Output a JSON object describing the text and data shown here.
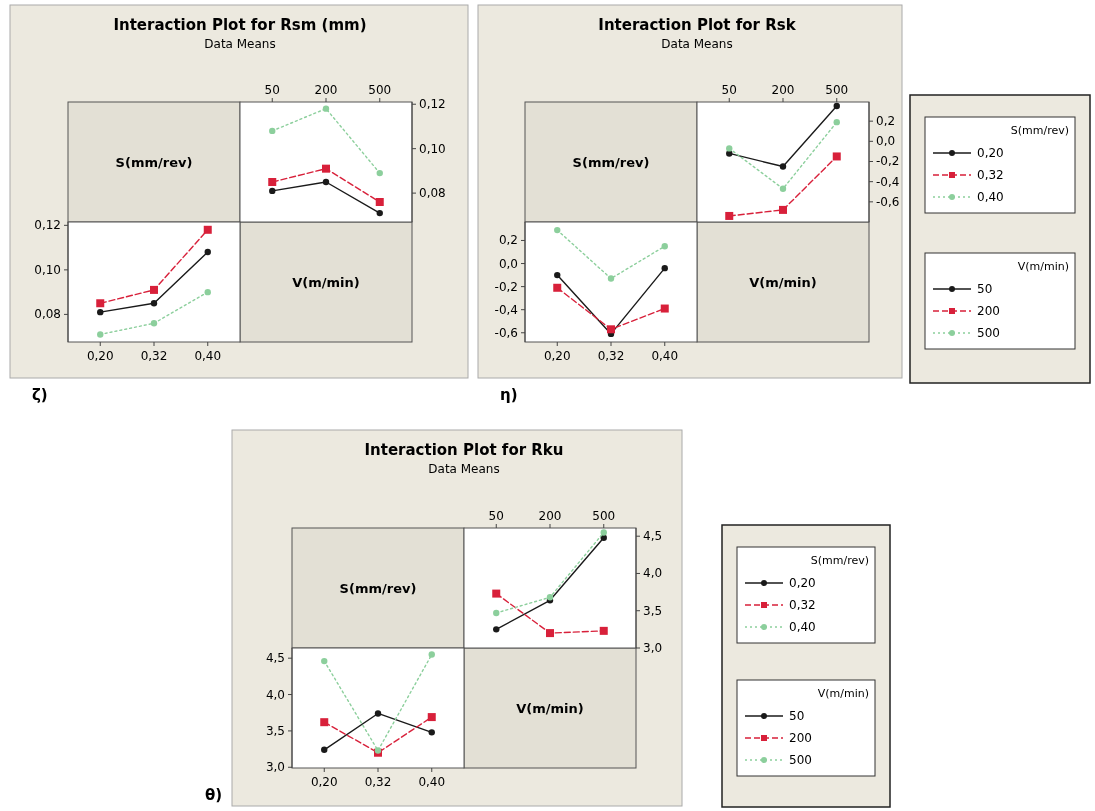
{
  "chart_data": [
    {
      "type": "line",
      "title": "Interaction Plot for Rsm (mm)",
      "subtitle": "Data Means",
      "xlabel": "V(m/min)",
      "annotations": [
        "ζ)"
      ],
      "categories": [
        "50",
        "200",
        "500"
      ],
      "ylim": [
        0.067,
        0.121
      ],
      "yticks": [
        {
          "value": 0.08,
          "label": "0,08"
        },
        {
          "value": 0.1,
          "label": "0,10"
        },
        {
          "value": 0.12,
          "label": "0,12"
        }
      ],
      "legend": false,
      "series": [
        {
          "color": "#1a1a1a",
          "line_style": "solid",
          "marker": "circle",
          "values": [
            0.081,
            0.085,
            0.071
          ]
        },
        {
          "color": "#d8203a",
          "line_style": "dashed",
          "marker": "square",
          "values": [
            0.085,
            0.091,
            0.076
          ]
        },
        {
          "color": "#8ccf9c",
          "line_style": "dotted",
          "marker": "circle",
          "values": [
            0.108,
            0.118,
            0.089
          ]
        }
      ]
    },
    {
      "type": "line",
      "xlabel": "S(mm/rev)",
      "categories": [
        "0,20",
        "0,32",
        "0,40"
      ],
      "ylim": [
        0.0676,
        0.1215
      ],
      "yticks": [
        {
          "value": 0.08,
          "label": "0,08"
        },
        {
          "value": 0.1,
          "label": "0,10"
        },
        {
          "value": 0.12,
          "label": "0,12"
        }
      ],
      "legend": false,
      "series": [
        {
          "color": "#1a1a1a",
          "line_style": "solid",
          "marker": "circle",
          "values": [
            0.081,
            0.085,
            0.108
          ]
        },
        {
          "color": "#d8203a",
          "line_style": "dashed",
          "marker": "square",
          "values": [
            0.085,
            0.091,
            0.118
          ]
        },
        {
          "color": "#8ccf9c",
          "line_style": "dotted",
          "marker": "circle",
          "values": [
            0.071,
            0.076,
            0.09
          ]
        }
      ]
    },
    {
      "type": "line",
      "title": "Interaction Plot for Rsk",
      "subtitle": "Data Means",
      "xlabel": "V(m/min)",
      "annotations": [
        "η)"
      ],
      "categories": [
        "50",
        "200",
        "500"
      ],
      "ylim": [
        -0.8,
        0.39
      ],
      "yticks": [
        {
          "value": -0.6,
          "label": "-0,6"
        },
        {
          "value": -0.4,
          "label": "-0,4"
        },
        {
          "value": -0.2,
          "label": "-0,2"
        },
        {
          "value": 0,
          "label": "0,0"
        },
        {
          "value": 0.2,
          "label": "0,2"
        }
      ],
      "legend": "right",
      "legend_title": "S(mm/rev)",
      "series": [
        {
          "name": "0,20",
          "color": "#1a1a1a",
          "line_style": "solid",
          "marker": "circle",
          "values": [
            -0.12,
            -0.25,
            0.35
          ]
        },
        {
          "name": "0,32",
          "color": "#d8203a",
          "line_style": "dashed",
          "marker": "square",
          "values": [
            -0.74,
            -0.68,
            -0.15
          ]
        },
        {
          "name": "0,40",
          "color": "#8ccf9c",
          "line_style": "dotted",
          "marker": "circle",
          "values": [
            -0.07,
            -0.47,
            0.19
          ]
        }
      ]
    },
    {
      "type": "line",
      "xlabel": "S(mm/rev)",
      "categories": [
        "0,20",
        "0,32",
        "0,40"
      ],
      "ylim": [
        -0.68,
        0.36
      ],
      "yticks": [
        {
          "value": -0.6,
          "label": "-0,6"
        },
        {
          "value": -0.4,
          "label": "-0,4"
        },
        {
          "value": -0.2,
          "label": "-0,2"
        },
        {
          "value": 0,
          "label": "0,0"
        },
        {
          "value": 0.2,
          "label": "0,2"
        }
      ],
      "legend": "right",
      "legend_title": "V(m/min)",
      "series": [
        {
          "name": "50",
          "color": "#1a1a1a",
          "line_style": "solid",
          "marker": "circle",
          "values": [
            -0.1,
            -0.61,
            -0.04
          ]
        },
        {
          "name": "200",
          "color": "#d8203a",
          "line_style": "dashed",
          "marker": "square",
          "values": [
            -0.21,
            -0.57,
            -0.39
          ]
        },
        {
          "name": "500",
          "color": "#8ccf9c",
          "line_style": "dotted",
          "marker": "circle",
          "values": [
            0.29,
            -0.13,
            0.15
          ]
        }
      ]
    },
    {
      "type": "line",
      "title": "Interaction Plot for Rku",
      "subtitle": "Data Means",
      "xlabel": "V(m/min)",
      "annotations": [
        "θ)"
      ],
      "categories": [
        "50",
        "200",
        "500"
      ],
      "ylim": [
        3.0,
        4.61
      ],
      "yticks": [
        {
          "value": 3,
          "label": "3,0"
        },
        {
          "value": 3.5,
          "label": "3,5"
        },
        {
          "value": 4,
          "label": "4,0"
        },
        {
          "value": 4.5,
          "label": "4,5"
        }
      ],
      "legend": "right",
      "legend_title": "S(mm/rev)",
      "series": [
        {
          "name": "0,20",
          "color": "#1a1a1a",
          "line_style": "solid",
          "marker": "circle",
          "values": [
            3.25,
            3.64,
            4.48
          ]
        },
        {
          "name": "0,32",
          "color": "#d8203a",
          "line_style": "dashed",
          "marker": "square",
          "values": [
            3.73,
            3.2,
            3.23
          ]
        },
        {
          "name": "0,40",
          "color": "#8ccf9c",
          "line_style": "dotted",
          "marker": "circle",
          "values": [
            3.47,
            3.68,
            4.55
          ]
        }
      ]
    },
    {
      "type": "line",
      "xlabel": "S(mm/rev)",
      "categories": [
        "0,20",
        "0,32",
        "0,40"
      ],
      "ylim": [
        2.99,
        4.64
      ],
      "yticks": [
        {
          "value": 3,
          "label": "3,0"
        },
        {
          "value": 3.5,
          "label": "3,5"
        },
        {
          "value": 4,
          "label": "4,0"
        },
        {
          "value": 4.5,
          "label": "4,5"
        }
      ],
      "legend": "right",
      "legend_title": "V(m/min)",
      "series": [
        {
          "name": "50",
          "color": "#1a1a1a",
          "line_style": "solid",
          "marker": "circle",
          "values": [
            3.24,
            3.74,
            3.48
          ]
        },
        {
          "name": "200",
          "color": "#d8203a",
          "line_style": "dashed",
          "marker": "square",
          "values": [
            3.62,
            3.2,
            3.69
          ]
        },
        {
          "name": "500",
          "color": "#8ccf9c",
          "line_style": "dotted",
          "marker": "circle",
          "values": [
            4.46,
            3.23,
            4.55
          ]
        }
      ]
    }
  ]
}
